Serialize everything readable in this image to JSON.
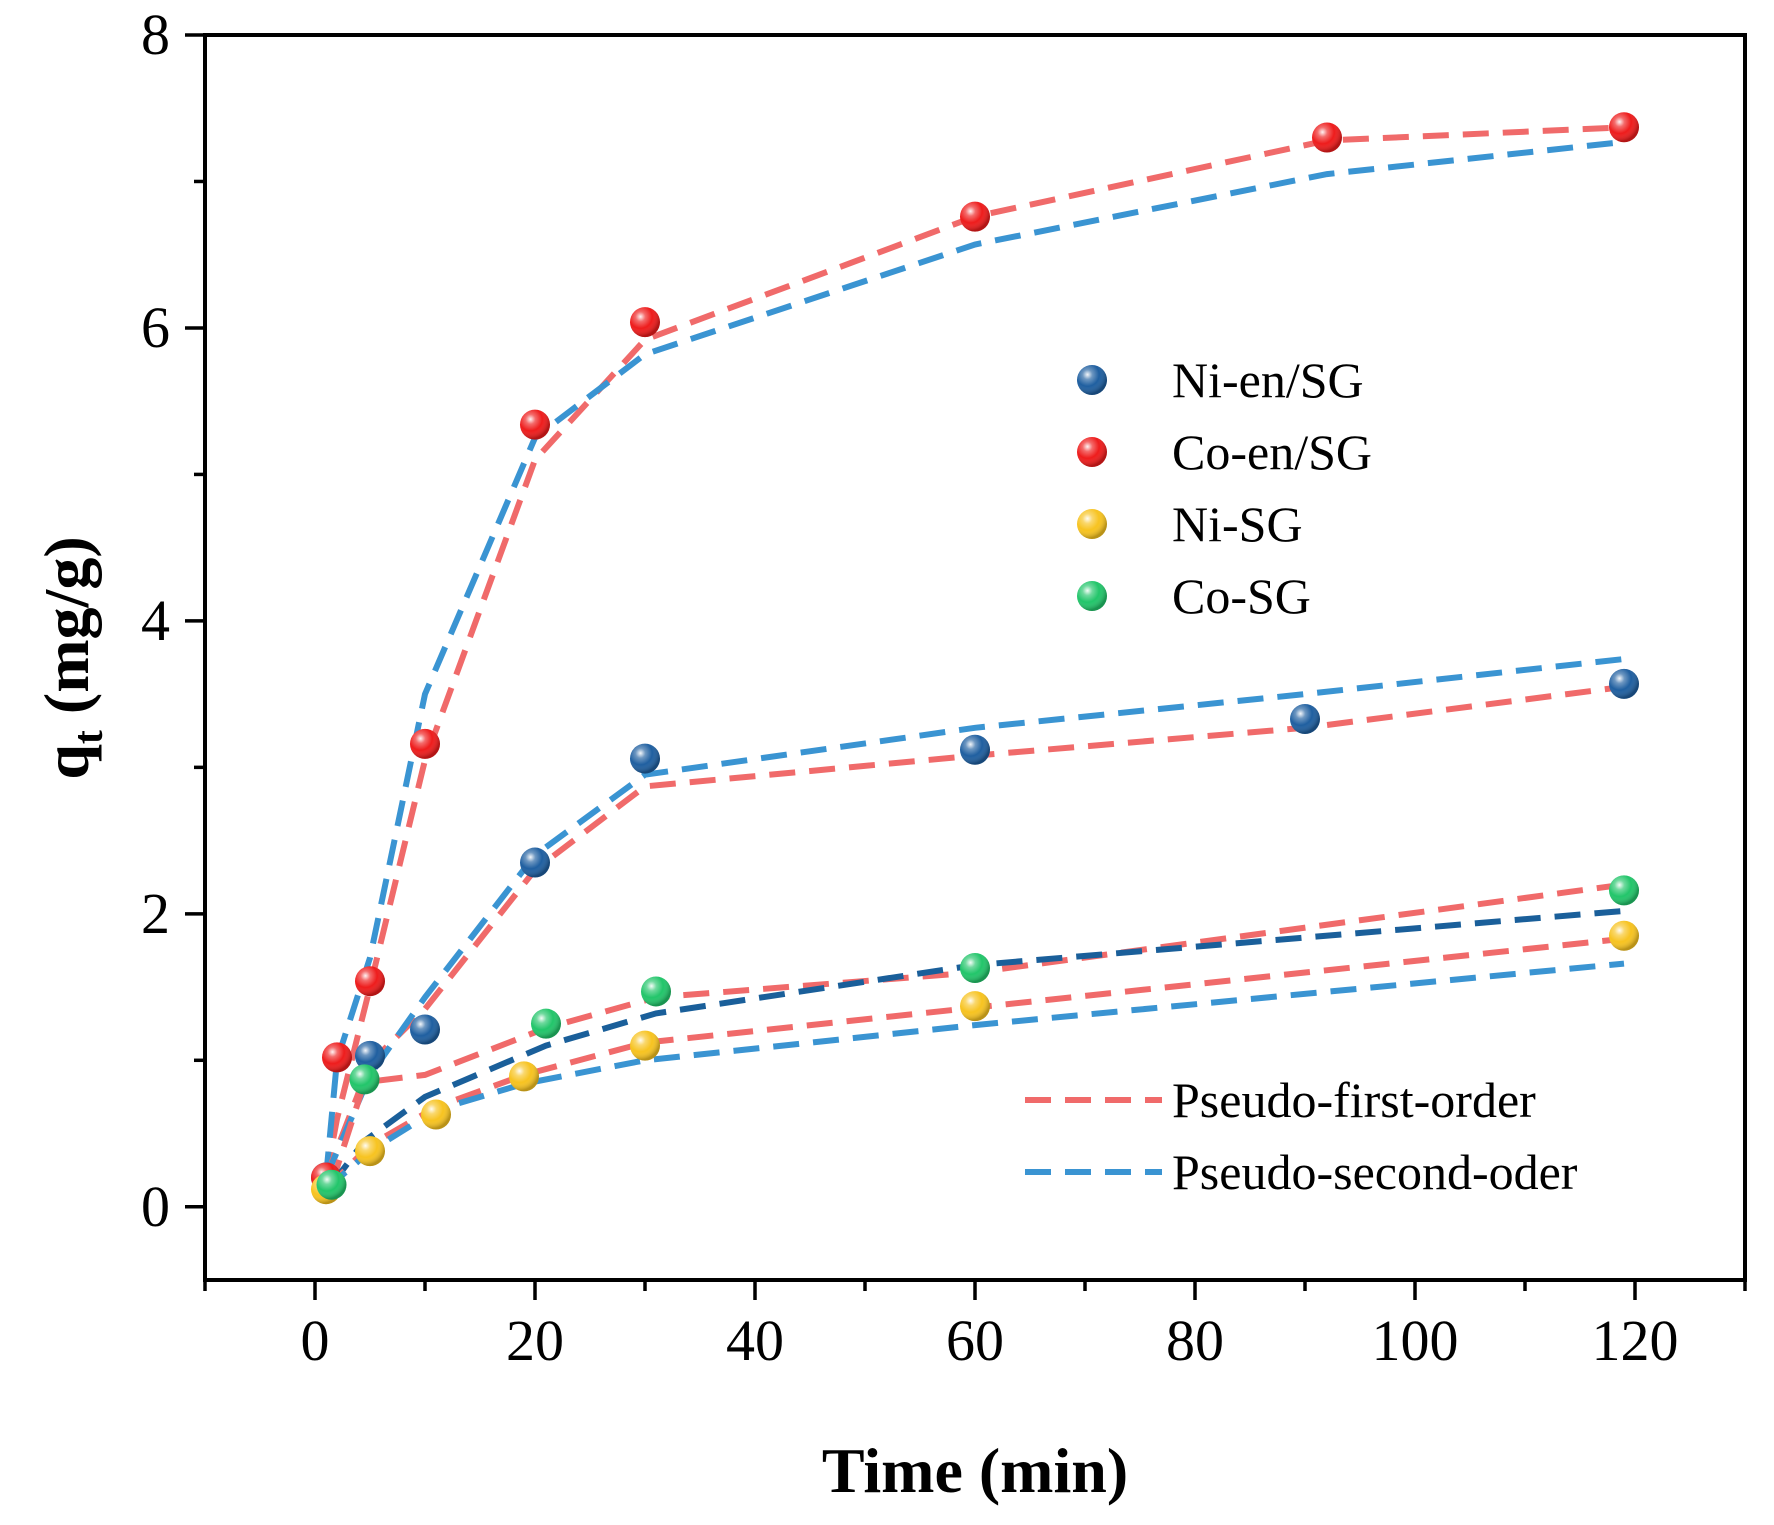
{
  "chart_data": {
    "type": "scatter",
    "xlabel": "Time (min)",
    "ylabel_main": "q",
    "ylabel_sub": "t",
    "ylabel_unit": " (mg/g)",
    "xlim": [
      -10,
      130
    ],
    "ylim": [
      -0.5,
      8
    ],
    "xticks": [
      0,
      20,
      40,
      60,
      80,
      100,
      120
    ],
    "yticks": [
      0,
      2,
      4,
      6,
      8
    ],
    "grid": false,
    "legend_position": "upper-right",
    "series": [
      {
        "name": "Ni-en/SG",
        "color": "#1f5fa0",
        "x": [
          1,
          5,
          10,
          20,
          30,
          60,
          90,
          119
        ],
        "y": [
          0.2,
          1.03,
          1.21,
          2.35,
          3.06,
          3.12,
          3.33,
          3.57
        ]
      },
      {
        "name": "Co-en/SG",
        "color": "#ee1c1c",
        "x": [
          1,
          2,
          5,
          10,
          20,
          30,
          60,
          92,
          119
        ],
        "y": [
          0.2,
          1.02,
          1.54,
          3.16,
          5.34,
          6.04,
          6.76,
          7.3,
          7.37
        ]
      },
      {
        "name": "Ni-SG",
        "color": "#f7c320",
        "x": [
          1,
          5,
          11,
          19,
          30,
          60,
          119
        ],
        "y": [
          0.12,
          0.38,
          0.63,
          0.89,
          1.1,
          1.37,
          1.85
        ]
      },
      {
        "name": "Co-SG",
        "color": "#22c56a",
        "x": [
          1.5,
          4.5,
          21,
          31,
          60,
          119
        ],
        "y": [
          0.15,
          0.87,
          1.25,
          1.47,
          1.63,
          2.16
        ]
      }
    ],
    "fits": [
      {
        "name": "Pseudo-first-order",
        "color": "#f06a6a",
        "x": [
          1,
          2,
          5,
          10,
          20,
          30,
          60,
          92,
          119
        ],
        "y": [
          0.2,
          0.6,
          1.5,
          3.05,
          5.1,
          5.92,
          6.76,
          7.28,
          7.37
        ]
      },
      {
        "name": "Pseudo-second-oder",
        "color": "#3a94d2",
        "x": [
          1,
          2,
          5,
          10,
          20,
          30,
          60,
          92,
          119
        ],
        "y": [
          0.2,
          1.0,
          1.7,
          3.5,
          5.25,
          5.82,
          6.57,
          7.05,
          7.27
        ]
      },
      {
        "name": "Pseudo-first-order",
        "color": "#f06a6a",
        "x": [
          1,
          5,
          10,
          20,
          30,
          60,
          90,
          119
        ],
        "y": [
          0.2,
          0.98,
          1.35,
          2.3,
          2.87,
          3.08,
          3.27,
          3.55
        ]
      },
      {
        "name": "Pseudo-second-oder",
        "color": "#3a94d2",
        "x": [
          1,
          5,
          10,
          20,
          30,
          60,
          90,
          119
        ],
        "y": [
          0.2,
          0.9,
          1.43,
          2.4,
          2.95,
          3.27,
          3.5,
          3.74
        ]
      },
      {
        "name": "Pseudo-first-order",
        "color": "#f06a6a",
        "x": [
          1.5,
          4.5,
          10,
          21,
          31,
          60,
          119
        ],
        "y": [
          0.15,
          0.85,
          0.9,
          1.22,
          1.43,
          1.6,
          2.2
        ]
      },
      {
        "name": "Pseudo-second-oder",
        "color": "#1a5f9a",
        "x": [
          1.5,
          4.5,
          10,
          21,
          31,
          60,
          119
        ],
        "y": [
          0.15,
          0.45,
          0.75,
          1.1,
          1.32,
          1.65,
          2.02
        ]
      },
      {
        "name": "Pseudo-first-order",
        "color": "#f06a6a",
        "x": [
          1,
          5,
          11,
          19,
          30,
          60,
          119
        ],
        "y": [
          0.12,
          0.42,
          0.68,
          0.9,
          1.12,
          1.36,
          1.83
        ]
      },
      {
        "name": "Pseudo-second-oder",
        "color": "#3a94d2",
        "x": [
          1,
          5,
          11,
          19,
          30,
          60,
          119
        ],
        "y": [
          0.12,
          0.38,
          0.66,
          0.84,
          1.0,
          1.24,
          1.66
        ]
      }
    ],
    "fit_legend": [
      {
        "name": "Pseudo-first-order",
        "color": "#f06a6a"
      },
      {
        "name": "Pseudo-second-oder",
        "color": "#3a94d2"
      }
    ]
  }
}
